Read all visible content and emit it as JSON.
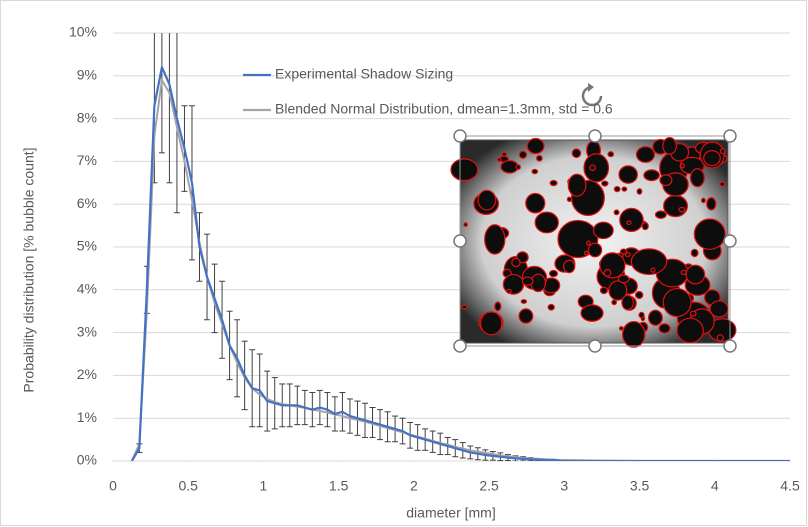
{
  "chart_data": {
    "type": "line",
    "x_label": "diameter [mm]",
    "y_label": "Probability distribution  [% bubble count]",
    "x": [
      0.125,
      0.175,
      0.225,
      0.275,
      0.325,
      0.375,
      0.425,
      0.475,
      0.525,
      0.575,
      0.625,
      0.675,
      0.725,
      0.775,
      0.825,
      0.875,
      0.925,
      0.975,
      1.025,
      1.075,
      1.125,
      1.175,
      1.225,
      1.275,
      1.325,
      1.375,
      1.425,
      1.475,
      1.525,
      1.575,
      1.625,
      1.675,
      1.725,
      1.775,
      1.825,
      1.875,
      1.925,
      1.975,
      2.025,
      2.075,
      2.125,
      2.175,
      2.225,
      2.275,
      2.325,
      2.375,
      2.425,
      2.475,
      2.525,
      2.575,
      2.625,
      2.675,
      2.725,
      2.775,
      2.825,
      2.875,
      2.925,
      2.975,
      3.25,
      3.5,
      3.75,
      4.0,
      4.25,
      4.5
    ],
    "series": [
      {
        "name": "Experimental Shadow Sizing",
        "color": "#4472c4",
        "values": [
          0,
          0.3,
          4.0,
          8.3,
          9.2,
          8.8,
          8.0,
          7.3,
          6.5,
          5.0,
          4.3,
          3.8,
          3.3,
          2.7,
          2.4,
          2.0,
          1.7,
          1.65,
          1.4,
          1.35,
          1.3,
          1.3,
          1.3,
          1.25,
          1.2,
          1.25,
          1.2,
          1.1,
          1.15,
          1.05,
          1.0,
          0.95,
          0.9,
          0.85,
          0.8,
          0.75,
          0.7,
          0.6,
          0.55,
          0.5,
          0.45,
          0.4,
          0.35,
          0.3,
          0.25,
          0.2,
          0.17,
          0.14,
          0.12,
          0.1,
          0.08,
          0.06,
          0.05,
          0.04,
          0.03,
          0.02,
          0.02,
          0.01,
          0,
          0,
          0,
          0,
          0,
          0
        ],
        "errors": [
          null,
          0.1,
          0.55,
          1.8,
          2.0,
          2.3,
          2.2,
          1.0,
          1.8,
          0.8,
          1.0,
          0.8,
          0.9,
          0.8,
          0.9,
          0.8,
          0.9,
          0.85,
          0.7,
          0.6,
          0.5,
          0.5,
          0.45,
          0.4,
          0.4,
          0.4,
          0.4,
          0.4,
          0.45,
          0.4,
          0.4,
          0.4,
          0.35,
          0.35,
          0.35,
          0.3,
          0.3,
          0.3,
          0.3,
          0.25,
          0.25,
          0.25,
          0.2,
          0.2,
          0.18,
          0.15,
          0.14,
          0.12,
          0.1,
          0.09,
          0.07,
          0.06,
          0.05,
          0.04,
          0.03,
          0.02,
          0.02,
          0.01,
          null,
          null,
          null,
          null,
          null,
          null
        ]
      },
      {
        "name": "Blended Normal Distribution, dmean=1.3mm, std = 0.6",
        "color": "#a5a5a5",
        "values": [
          0,
          0.4,
          3.5,
          7.6,
          8.9,
          8.6,
          7.8,
          7.0,
          6.1,
          5.1,
          4.3,
          3.7,
          3.2,
          2.7,
          2.3,
          1.95,
          1.7,
          1.55,
          1.45,
          1.38,
          1.33,
          1.3,
          1.27,
          1.24,
          1.2,
          1.17,
          1.13,
          1.09,
          1.05,
          1.0,
          0.96,
          0.92,
          0.87,
          0.82,
          0.77,
          0.72,
          0.67,
          0.62,
          0.57,
          0.52,
          0.47,
          0.42,
          0.38,
          0.33,
          0.29,
          0.25,
          0.22,
          0.19,
          0.16,
          0.13,
          0.11,
          0.09,
          0.07,
          0.06,
          0.05,
          0.04,
          0.03,
          0.02,
          0.01,
          0,
          0,
          0,
          0,
          0
        ]
      }
    ],
    "xlim": [
      0,
      4.5
    ],
    "xticks": [
      0,
      0.5,
      1,
      1.5,
      2,
      2.5,
      3,
      3.5,
      4,
      4.5
    ],
    "ylim": [
      0,
      10
    ],
    "yticks": [
      {
        "value": 0,
        "label": "0%"
      },
      {
        "value": 1,
        "label": "1%"
      },
      {
        "value": 2,
        "label": "2%"
      },
      {
        "value": 3,
        "label": "3%"
      },
      {
        "value": 4,
        "label": "4%"
      },
      {
        "value": 5,
        "label": "5%"
      },
      {
        "value": 6,
        "label": "6%"
      },
      {
        "value": 7,
        "label": "7%"
      },
      {
        "value": 8,
        "label": "8%"
      },
      {
        "value": 9,
        "label": "9%"
      },
      {
        "value": 10,
        "label": "10%"
      }
    ],
    "grid": true,
    "legend": "top"
  }
}
